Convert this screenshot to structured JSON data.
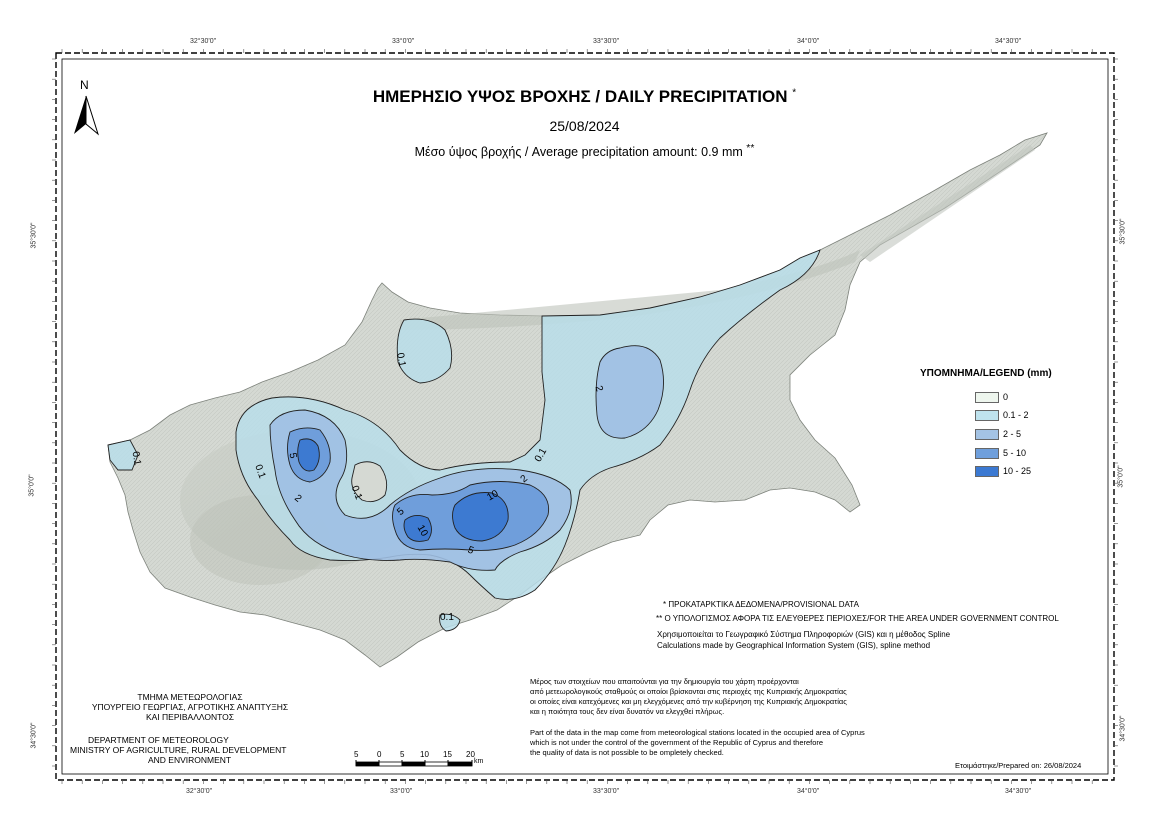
{
  "header": {
    "title": "ΗΜΕΡΗΣΙΟ ΥΨΟΣ ΒΡΟΧΗΣ / DAILY PRECIPITATION",
    "title_mark": "*",
    "date": "25/08/2024",
    "average": "Μέσο ύψος βροχής / Average precipitation amount: 0.9 mm",
    "average_mark": "**"
  },
  "north": "N",
  "coords": {
    "top": [
      "32°30'0\"",
      "33°0'0\"",
      "33°30'0\"",
      "34°0'0\"",
      "34°30'0\""
    ],
    "bottom": [
      "32°30'0\"",
      "33°0'0\"",
      "33°30'0\"",
      "34°0'0\"",
      "34°30'0\""
    ],
    "left": [
      "35°30'0\"",
      "35°0'0\"",
      "34°30'0\""
    ],
    "right": [
      "35°30'0\"",
      "35°0'0\"",
      "34°30'0\""
    ]
  },
  "legend": {
    "title": "ΥΠΟΜΝΗΜΑ/LEGEND (mm)",
    "items": [
      {
        "label": "0",
        "color": "#eef6ee"
      },
      {
        "label": "0.1 - 2",
        "color": "#bfe3ee"
      },
      {
        "label": "2 - 5",
        "color": "#a4c3e4"
      },
      {
        "label": "5 - 10",
        "color": "#6f9fdc"
      },
      {
        "label": "10 - 25",
        "color": "#3b79d2"
      }
    ]
  },
  "contour_labels": [
    "0.1",
    "2",
    "5",
    "10"
  ],
  "notes": {
    "provisional": "ΠΡΟΚΑΤΑΡΚΤΙΚΑ ΔΕΔΟΜΕΝΑ/PROVISIONAL DATA",
    "provisional_mark": "*",
    "area": "Ο ΥΠΟΛΟΓΙΣΜΟΣ ΑΦΟΡΑ ΤΙΣ ΕΛΕΥΘΕΡΕΣ ΠΕΡΙΟΧΕΣ/FOR THE AREA UNDER GOVERNMENT CONTROL",
    "area_mark": "**",
    "gis_gr": "Χρησιμοποιείται το Γεωγραφικό Σύστημα Πληροφοριών (GIS) και η μέθοδος Spline",
    "gis_en": "Calculations made by Geographical Information System (GIS), spline method",
    "occ_gr_1": "Μέρος των στοιχείων που απαιτούνται για την δημιουργία του χάρτη προέρχονται",
    "occ_gr_2": "από μετεωρολογικούς σταθμούς οι οποίοι βρίσκονται στις περιοχές της Κυπριακής Δημοκρατίας",
    "occ_gr_3": "οι οποίες είναι κατεχόμενες και μη ελεγχόμενες από την κυβέρνηση της Κυπριακής Δημοκρατίας",
    "occ_gr_4": "και η ποιότητα τους δεν είναι δυνατόν να ελεγχθεί πλήρως.",
    "occ_en_1": "Part of the data in the map come from meteorological stations located in the occupied area of Cyprus",
    "occ_en_2": "which is not under the control of the government of the Republic of Cyprus and therefore",
    "occ_en_3": "the quality of data is not possible to be ompletely checked.",
    "prepared": "Ετοιμάστηκε/Prepared on: 26/08/2024"
  },
  "department": {
    "gr_1": "ΤΜΗΜΑ ΜΕΤΕΩΡΟΛΟΓΙΑΣ",
    "gr_2": "ΥΠΟΥΡΓΕΙΟ ΓΕΩΡΓΙΑΣ, ΑΓΡΟΤΙΚΗΣ ΑΝΑΠΤΥΞΗΣ",
    "gr_3": "ΚΑΙ ΠΕΡΙΒΑΛΛΟΝΤΟΣ",
    "en_1": "DEPARTMENT OF METEOROLOGY",
    "en_2": "MINISTRY OF AGRICULTURE, RURAL DEVELOPMENT",
    "en_3": "AND ENVIRONMENT"
  },
  "scale": {
    "labels": [
      "5",
      "0",
      "5",
      "10",
      "15",
      "20"
    ],
    "unit": "km"
  }
}
